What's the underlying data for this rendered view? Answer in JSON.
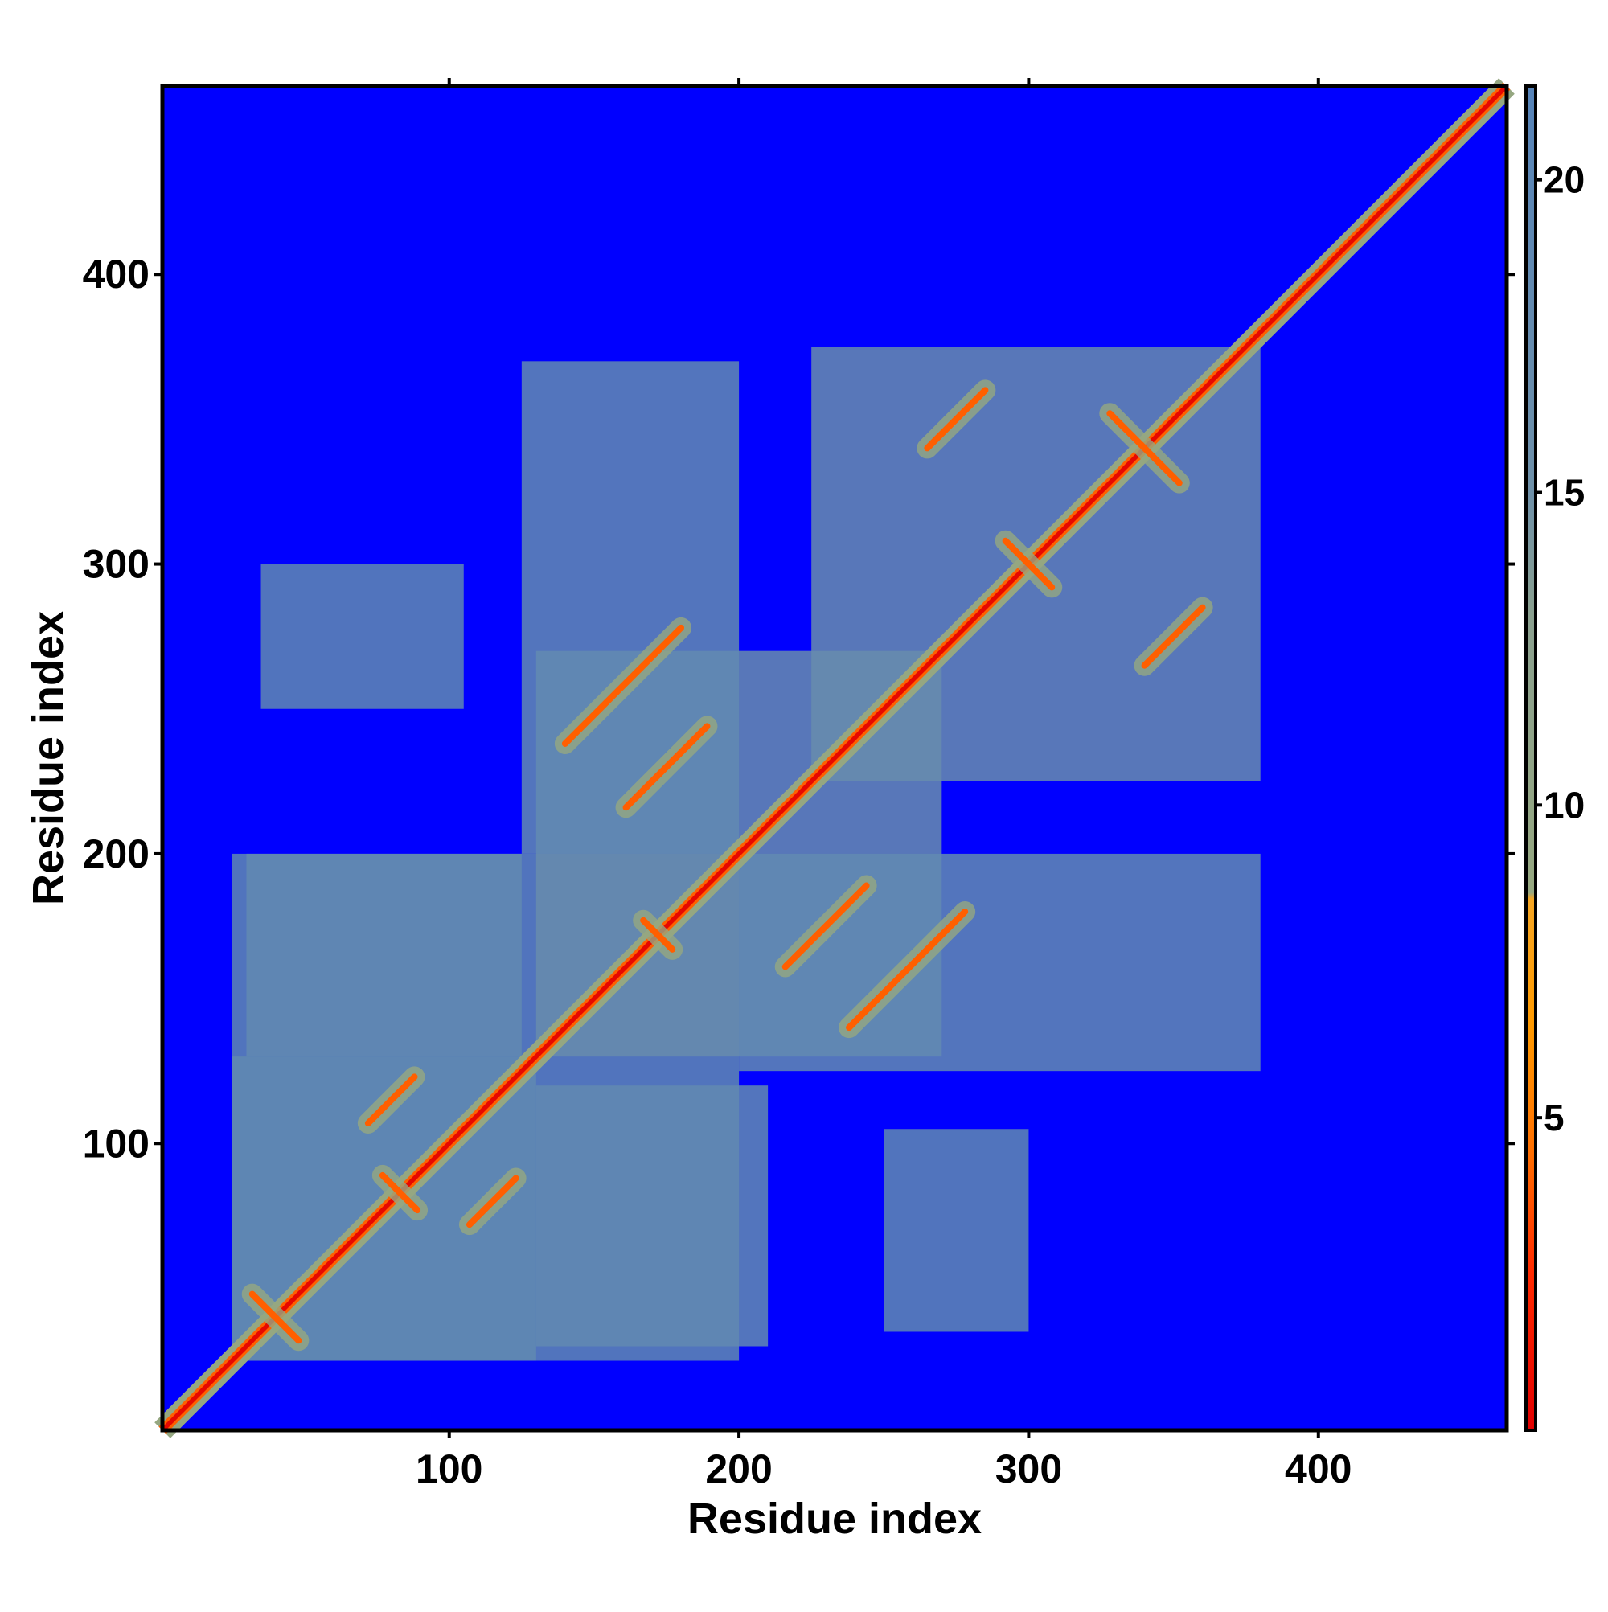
{
  "chart_data": {
    "type": "heatmap",
    "title": "",
    "xlabel": "Residue index",
    "ylabel": "Residue index",
    "xlim": [
      1,
      465
    ],
    "ylim": [
      1,
      465
    ],
    "x_ticks": [
      100,
      200,
      300,
      400
    ],
    "y_ticks": [
      100,
      200,
      300,
      400
    ],
    "colorbar": {
      "ticks": [
        5,
        10,
        15,
        20
      ],
      "range": [
        0,
        21.5
      ],
      "stops": [
        {
          "value": 0,
          "color": "#e00000"
        },
        {
          "value": 2.5,
          "color": "#ff2a00"
        },
        {
          "value": 4.5,
          "color": "#ff7000"
        },
        {
          "value": 6.5,
          "color": "#ff9a00"
        },
        {
          "value": 8.5,
          "color": "#f5a623"
        },
        {
          "value": 8.6,
          "color": "#96a880"
        },
        {
          "value": 13,
          "color": "#8aa08e"
        },
        {
          "value": 15,
          "color": "#6e90a8"
        },
        {
          "value": 21.5,
          "color": "#5683b8"
        }
      ]
    },
    "background_color": "#0000ff",
    "matrix_description": "symmetric residue distance map",
    "domain_blocks": [
      {
        "x0": 25,
        "x1": 130,
        "y0": 25,
        "y1": 130,
        "value": 17
      },
      {
        "x0": 25,
        "x1": 200,
        "y0": 25,
        "y1": 200,
        "value": 19
      },
      {
        "x0": 130,
        "x1": 270,
        "y0": 130,
        "y1": 270,
        "value": 17
      },
      {
        "x0": 30,
        "x1": 125,
        "y0": 130,
        "y1": 200,
        "value": 18.5
      },
      {
        "x0": 130,
        "x1": 210,
        "y0": 30,
        "y1": 120,
        "value": 18.5
      },
      {
        "x0": 200,
        "x1": 380,
        "y0": 125,
        "y1": 200,
        "value": 18.5
      },
      {
        "x0": 125,
        "x1": 200,
        "y0": 200,
        "y1": 370,
        "value": 18.5
      },
      {
        "x0": 225,
        "x1": 380,
        "y0": 225,
        "y1": 375,
        "value": 17
      },
      {
        "x0": 250,
        "x1": 300,
        "y0": 35,
        "y1": 105,
        "value": 19
      },
      {
        "x0": 35,
        "x1": 105,
        "y0": 250,
        "y1": 300,
        "value": 19
      }
    ],
    "contact_features": [
      {
        "kind": "diag-band",
        "width": 3.5
      },
      {
        "kind": "anti",
        "cx": 40,
        "cy": 40,
        "length": 16
      },
      {
        "kind": "anti",
        "cx": 83,
        "cy": 83,
        "length": 12
      },
      {
        "kind": "anti",
        "cx": 300,
        "cy": 300,
        "length": 16
      },
      {
        "kind": "anti",
        "cx": 340,
        "cy": 340,
        "length": 24
      },
      {
        "kind": "anti",
        "cx": 172,
        "cy": 172,
        "length": 10
      },
      {
        "kind": "para",
        "cx": 160,
        "cy": 258,
        "length": 40
      },
      {
        "kind": "para",
        "cx": 258,
        "cy": 160,
        "length": 40
      },
      {
        "kind": "para",
        "cx": 175,
        "cy": 230,
        "length": 28
      },
      {
        "kind": "para",
        "cx": 230,
        "cy": 175,
        "length": 28
      },
      {
        "kind": "para",
        "cx": 275,
        "cy": 350,
        "length": 20
      },
      {
        "kind": "para",
        "cx": 350,
        "cy": 275,
        "length": 20
      },
      {
        "kind": "para",
        "cx": 115,
        "cy": 80,
        "length": 16
      },
      {
        "kind": "para",
        "cx": 80,
        "cy": 115,
        "length": 16
      }
    ]
  }
}
